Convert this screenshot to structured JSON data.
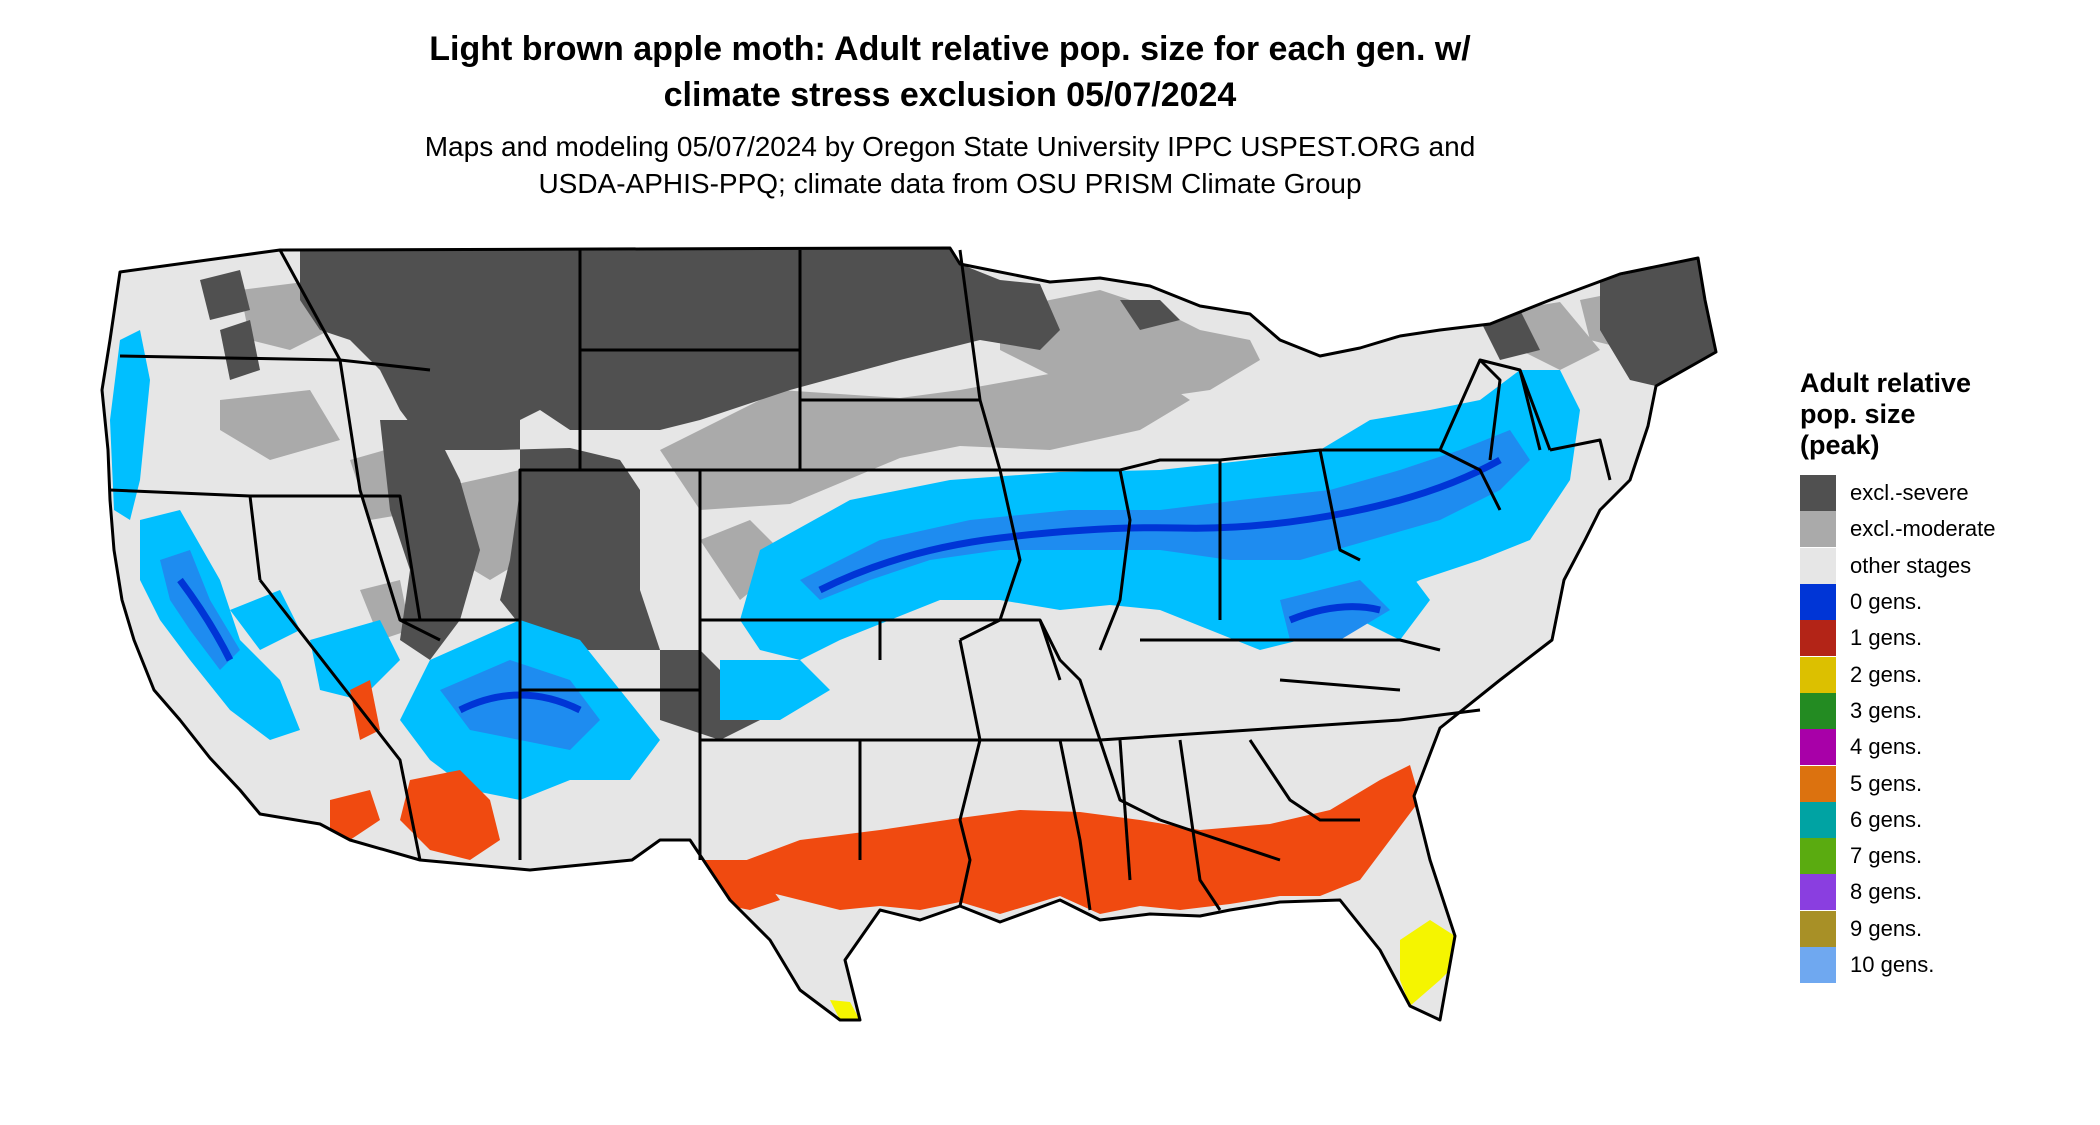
{
  "header": {
    "title_line1": "Light brown apple moth: Adult relative pop. size for each gen. w/",
    "title_line2": "climate stress exclusion 05/07/2024",
    "subtitle_line1": "Maps and modeling 05/07/2024 by Oregon State University IPPC USPEST.ORG and",
    "subtitle_line2": "USDA-APHIS-PPQ; climate data from OSU PRISM Climate Group"
  },
  "legend": {
    "title_line1": "Adult relative",
    "title_line2": "pop. size",
    "title_line3": "(peak)",
    "items": [
      {
        "label": "excl.-severe",
        "color": "#505050"
      },
      {
        "label": "excl.-moderate",
        "color": "#aaaaaa"
      },
      {
        "label": "other stages",
        "color": "#e6e6e6"
      },
      {
        "label": "0 gens.",
        "color": "#0035d6"
      },
      {
        "label": "1 gens.",
        "color": "#b32417"
      },
      {
        "label": "2 gens.",
        "color": "#dcc000"
      },
      {
        "label": "3 gens.",
        "color": "#238b22"
      },
      {
        "label": "4 gens.",
        "color": "#a800a8"
      },
      {
        "label": "5 gens.",
        "color": "#dc720f"
      },
      {
        "label": "6 gens.",
        "color": "#00a3a3"
      },
      {
        "label": "7 gens.",
        "color": "#5aab10"
      },
      {
        "label": "8 gens.",
        "color": "#8a3ee0"
      },
      {
        "label": "9 gens.",
        "color": "#a89026"
      },
      {
        "label": "10 gens.",
        "color": "#6fa8f0"
      }
    ]
  },
  "map": {
    "region": "Contiguous United States",
    "colors": {
      "land_base": "#e6e6e6",
      "excl_severe": "#505050",
      "excl_moderate": "#aaaaaa",
      "cyan_band": "#00bfff",
      "mid_blue": "#1e8cf0",
      "deep_blue": "#0035d6",
      "orange_red": "#f04a10",
      "yellow": "#f5f500",
      "border": "#000000"
    }
  }
}
